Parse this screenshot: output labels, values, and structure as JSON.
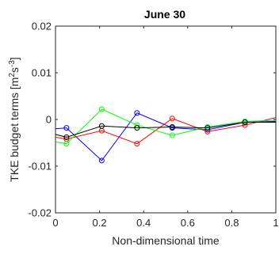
{
  "chart_data": {
    "type": "line",
    "title": "June 30",
    "xlabel": "Non-dimensional time",
    "ylabel": {
      "base": "TKE budget terms [m",
      "sup1": "2",
      "mid": "s",
      "sup2": "-3",
      "end": "]"
    },
    "xlim": [
      0,
      1
    ],
    "ylim": [
      -0.02,
      0.02
    ],
    "xticks": [
      0,
      0.2,
      0.4,
      0.6,
      0.8,
      1
    ],
    "xtick_labels": [
      "0",
      "0.2",
      "0.4",
      "0.6",
      "0.8",
      "1"
    ],
    "yticks": [
      -0.02,
      -0.01,
      0,
      0.01,
      0.02
    ],
    "ytick_labels": [
      "-0.02",
      "-0.01",
      "0",
      "0.01",
      "0.02"
    ],
    "grid": false,
    "x": [
      0,
      0.05,
      0.21,
      0.37,
      0.53,
      0.69,
      0.86,
      1.0
    ],
    "series": [
      {
        "color": "#0000ff",
        "values": [
          -0.002,
          -0.0018,
          -0.0088,
          0.0014,
          -0.0018,
          -0.0022,
          -0.0006,
          -0.0004
        ],
        "markers": [
          false,
          true,
          true,
          true,
          true,
          true,
          true,
          false
        ]
      },
      {
        "color": "#ff0000",
        "values": [
          -0.0038,
          -0.0042,
          -0.0024,
          -0.0052,
          0.0002,
          -0.0026,
          -0.0012,
          0.0004
        ],
        "markers": [
          false,
          true,
          true,
          true,
          true,
          true,
          true,
          false
        ]
      },
      {
        "color": "#00ff00",
        "values": [
          -0.0048,
          -0.0052,
          0.0022,
          -0.0012,
          -0.0034,
          -0.0016,
          -0.0004,
          -0.0002
        ],
        "markers": [
          false,
          true,
          true,
          true,
          true,
          true,
          true,
          false
        ]
      },
      {
        "color": "#000000",
        "values": [
          -0.0032,
          -0.0038,
          -0.0014,
          -0.0018,
          -0.0016,
          -0.0018,
          -0.0006,
          -0.0006
        ],
        "markers": [
          false,
          true,
          true,
          true,
          true,
          true,
          true,
          false
        ]
      }
    ]
  }
}
